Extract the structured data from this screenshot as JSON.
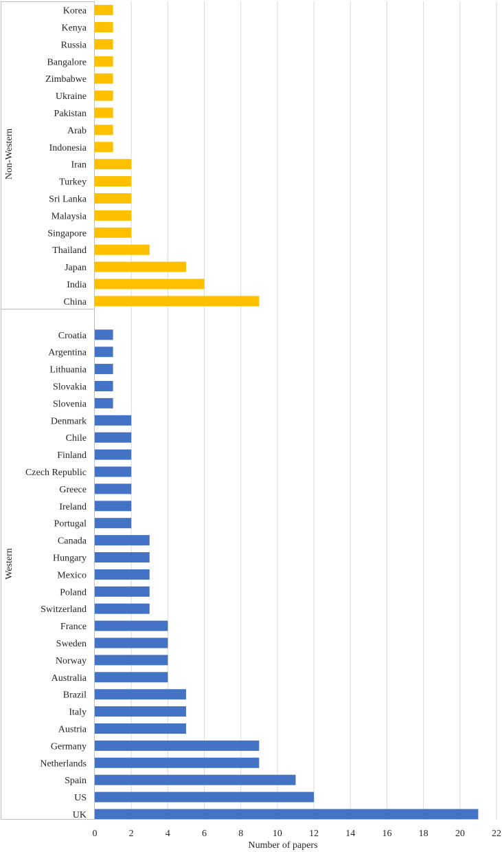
{
  "chart_data": {
    "type": "bar",
    "orientation": "horizontal",
    "xlabel": "Number of  papers",
    "xlim": [
      0,
      22
    ],
    "x_ticks": [
      0,
      2,
      4,
      6,
      8,
      10,
      12,
      14,
      16,
      18,
      20,
      22
    ],
    "grid": true,
    "groups": [
      {
        "name": "Non-Western",
        "color": "#FFC000",
        "categories": [
          "Korea",
          "Kenya",
          "Russia",
          "Bangalore",
          "Zimbabwe",
          "Ukraine",
          "Pakistan",
          "Arab",
          "Indonesia",
          "Iran",
          "Turkey",
          "Sri Lanka",
          "Malaysia",
          "Singapore",
          "Thailand",
          "Japan",
          "India",
          "China"
        ],
        "values": [
          1,
          1,
          1,
          1,
          1,
          1,
          1,
          1,
          1,
          2,
          2,
          2,
          2,
          2,
          3,
          5,
          6,
          9
        ]
      },
      {
        "name": "Western",
        "color": "#4472C4",
        "categories": [
          "Croatia",
          "Argentina",
          "Lithuania",
          "Slovakia",
          "Slovenia",
          "Denmark",
          "Chile",
          "Finland",
          "Czech Republic",
          "Greece",
          "Ireland",
          "Portugal",
          "Canada",
          "Hungary",
          "Mexico",
          "Poland",
          "Switzerland",
          "France",
          "Sweden",
          "Norway",
          "Australia",
          "Brazil",
          "Italy",
          "Austria",
          "Germany",
          "Netherlands",
          "Spain",
          "US",
          "UK"
        ],
        "values": [
          1,
          1,
          1,
          1,
          1,
          2,
          2,
          2,
          2,
          2,
          2,
          2,
          3,
          3,
          3,
          3,
          3,
          4,
          4,
          4,
          4,
          5,
          5,
          5,
          9,
          9,
          11,
          12,
          21
        ]
      }
    ]
  }
}
